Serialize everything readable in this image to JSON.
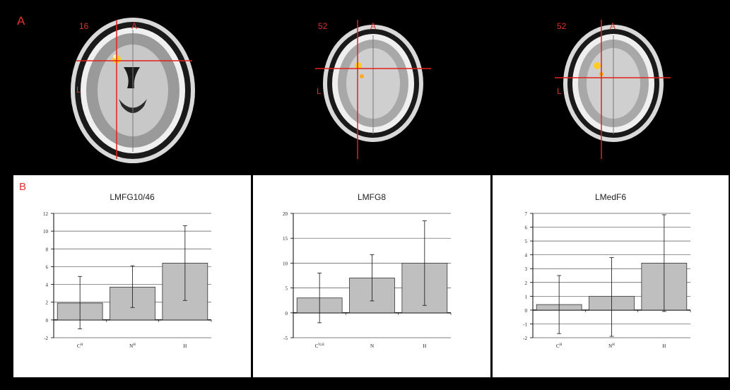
{
  "panel_a": {
    "label": "A",
    "slices": [
      {
        "number": "16",
        "anterior": "A",
        "left": "L"
      },
      {
        "number": "52",
        "anterior": "A",
        "left": "L"
      },
      {
        "number": "52",
        "anterior": "A",
        "left": "L"
      }
    ]
  },
  "panel_b": {
    "label": "B"
  },
  "colors": {
    "label_red": "#e0342c",
    "bar_fill": "#bfbfbf",
    "crosshair": "#e2231a",
    "activation": "#ffcc22"
  },
  "chart_data": [
    {
      "type": "bar",
      "title": "LMFG10/46",
      "categories": [
        "C",
        "N",
        "H"
      ],
      "category_superscripts": [
        "H",
        "H",
        ""
      ],
      "values": [
        1.9,
        3.7,
        6.4
      ],
      "error_low": [
        -1.0,
        1.4,
        2.2
      ],
      "error_high": [
        4.9,
        6.1,
        10.6
      ],
      "ylim": [
        -2,
        12
      ],
      "yticks": [
        "-2",
        "0",
        "2",
        "4",
        "6",
        "8",
        "10",
        "12"
      ],
      "grid": true
    },
    {
      "type": "bar",
      "title": "LMFG8",
      "categories": [
        "C",
        "N",
        "H"
      ],
      "category_superscripts": [
        "N,H",
        "",
        ""
      ],
      "values": [
        3.0,
        7.0,
        10.0
      ],
      "error_low": [
        -2.0,
        2.4,
        1.5
      ],
      "error_high": [
        8.0,
        11.7,
        18.5
      ],
      "ylim": [
        -5,
        20
      ],
      "yticks": [
        "-5",
        "0",
        "5",
        "10",
        "15",
        "20"
      ],
      "grid": true
    },
    {
      "type": "bar",
      "title": "LMedF6",
      "categories": [
        "C",
        "N",
        "H"
      ],
      "category_superscripts": [
        "H",
        "H",
        ""
      ],
      "values": [
        0.4,
        1.0,
        3.4
      ],
      "error_low": [
        -1.7,
        -1.9,
        -0.1
      ],
      "error_high": [
        2.5,
        3.8,
        6.9
      ],
      "ylim": [
        -2,
        7
      ],
      "yticks": [
        "-2",
        "-1",
        "0",
        "1",
        "2",
        "3",
        "4",
        "5",
        "6",
        "7"
      ],
      "grid": true
    }
  ]
}
